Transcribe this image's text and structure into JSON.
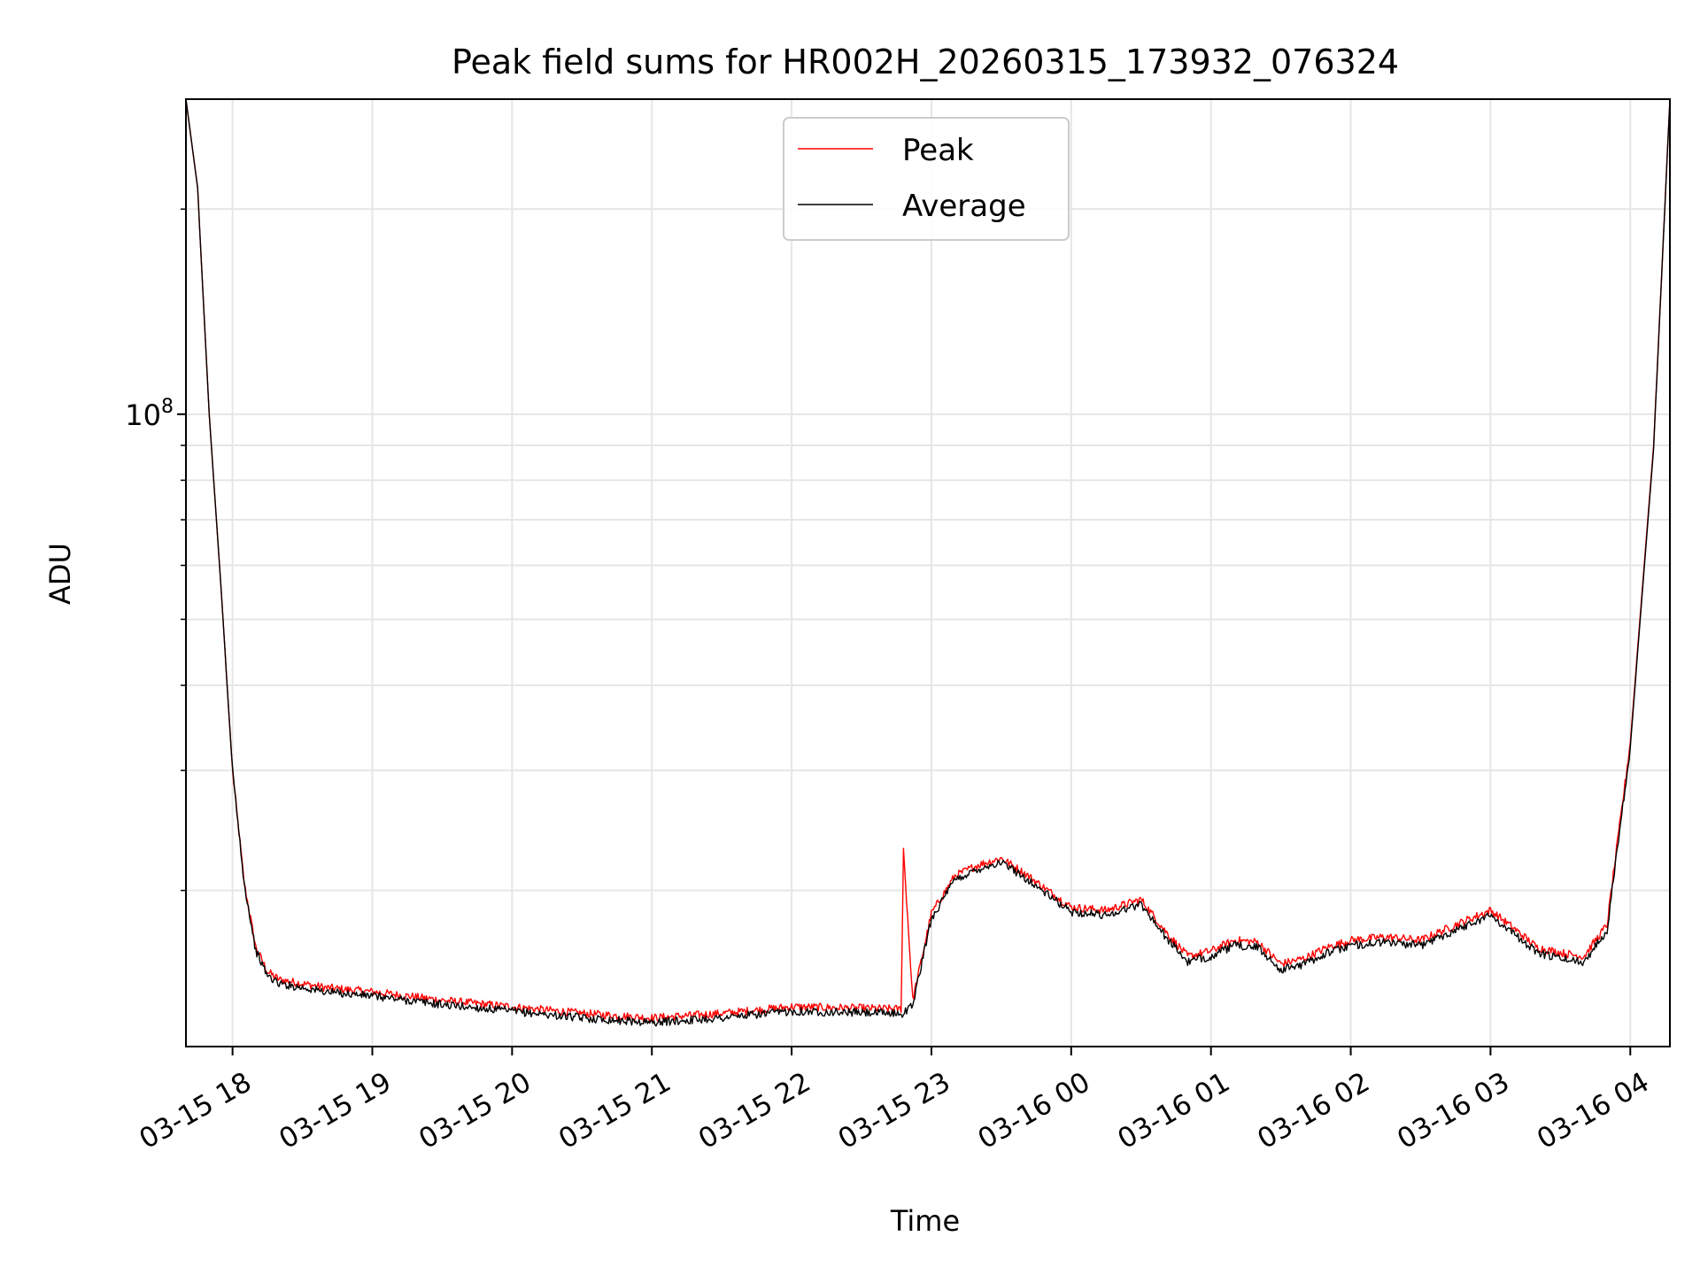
{
  "chart_data": {
    "type": "line",
    "title": "Peak field sums for HR002H_20260315_173932_076324",
    "xlabel": "Time",
    "ylabel": "ADU",
    "y_scale": "log",
    "grid": "on (major and minor)",
    "legend_placement": "top-center",
    "x_start": "2026-03-15T17:39",
    "x_end": "2026-03-16T04:18",
    "xlim": [
      "2026-03-15T17:40",
      "2026-03-16T04:17"
    ],
    "ylim": [
      11800000,
      290000000
    ],
    "x_ticks": [
      "03-15 18",
      "03-15 19",
      "03-15 20",
      "03-15 21",
      "03-15 22",
      "03-15 23",
      "03-16 00",
      "03-16 01",
      "03-16 02",
      "03-16 03",
      "03-16 04"
    ],
    "y_tick_major": "10^8",
    "y_ticks_minor": [
      20000000,
      30000000,
      40000000,
      50000000,
      60000000,
      70000000,
      80000000,
      90000000,
      200000000
    ],
    "series": [
      {
        "name": "Peak",
        "color": "#ff0000",
        "x": [
          "2026-03-15T17:40",
          "2026-03-15T17:45",
          "2026-03-15T17:50",
          "2026-03-15T17:55",
          "2026-03-15T18:00",
          "2026-03-15T18:05",
          "2026-03-15T18:10",
          "2026-03-15T18:15",
          "2026-03-15T18:20",
          "2026-03-15T18:25",
          "2026-03-15T18:30",
          "2026-03-15T18:40",
          "2026-03-15T19:00",
          "2026-03-15T19:30",
          "2026-03-15T20:00",
          "2026-03-15T20:30",
          "2026-03-15T21:00",
          "2026-03-15T21:30",
          "2026-03-15T22:00",
          "2026-03-15T22:45",
          "2026-03-15T22:47",
          "2026-03-15T22:48",
          "2026-03-15T22:52",
          "2026-03-15T23:00",
          "2026-03-15T23:10",
          "2026-03-15T23:20",
          "2026-03-15T23:30",
          "2026-03-15T23:40",
          "2026-03-15T23:50",
          "2026-03-16T00:00",
          "2026-03-16T00:15",
          "2026-03-16T00:30",
          "2026-03-16T00:40",
          "2026-03-16T00:50",
          "2026-03-16T01:00",
          "2026-03-16T01:10",
          "2026-03-16T01:20",
          "2026-03-16T01:30",
          "2026-03-16T01:40",
          "2026-03-16T01:50",
          "2026-03-16T02:00",
          "2026-03-16T02:15",
          "2026-03-16T02:30",
          "2026-03-16T02:45",
          "2026-03-16T03:00",
          "2026-03-16T03:10",
          "2026-03-16T03:20",
          "2026-03-16T03:30",
          "2026-03-16T03:40",
          "2026-03-16T03:50",
          "2026-03-16T04:00",
          "2026-03-16T04:10",
          "2026-03-16T04:17"
        ],
        "values": [
          290000000,
          215000000,
          100000000,
          56000000,
          30000000,
          20500000,
          16500000,
          15200000,
          14800000,
          14700000,
          14600000,
          14400000,
          14200000,
          13800000,
          13500000,
          13200000,
          13000000,
          13200000,
          13500000,
          13400000,
          13400000,
          23000000,
          13800000,
          18500000,
          21000000,
          21800000,
          22300000,
          21200000,
          20000000,
          18900000,
          18700000,
          19400000,
          17500000,
          16000000,
          16300000,
          16900000,
          16800000,
          15600000,
          15900000,
          16500000,
          16900000,
          17100000,
          16900000,
          17800000,
          18700000,
          17600000,
          16500000,
          16200000,
          16000000,
          17800000,
          33000000,
          90000000,
          290000000
        ]
      },
      {
        "name": "Average",
        "color": "#000000",
        "x": [
          "2026-03-15T17:40",
          "2026-03-15T17:45",
          "2026-03-15T17:50",
          "2026-03-15T17:55",
          "2026-03-15T18:00",
          "2026-03-15T18:05",
          "2026-03-15T18:10",
          "2026-03-15T18:15",
          "2026-03-15T18:20",
          "2026-03-15T18:25",
          "2026-03-15T18:30",
          "2026-03-15T18:40",
          "2026-03-15T19:00",
          "2026-03-15T19:30",
          "2026-03-15T20:00",
          "2026-03-15T20:30",
          "2026-03-15T21:00",
          "2026-03-15T21:30",
          "2026-03-15T22:00",
          "2026-03-15T22:45",
          "2026-03-15T22:47",
          "2026-03-15T22:48",
          "2026-03-15T22:52",
          "2026-03-15T23:00",
          "2026-03-15T23:10",
          "2026-03-15T23:20",
          "2026-03-15T23:30",
          "2026-03-15T23:40",
          "2026-03-15T23:50",
          "2026-03-16T00:00",
          "2026-03-16T00:15",
          "2026-03-16T00:30",
          "2026-03-16T00:40",
          "2026-03-16T00:50",
          "2026-03-16T01:00",
          "2026-03-16T01:10",
          "2026-03-16T01:20",
          "2026-03-16T01:30",
          "2026-03-16T01:40",
          "2026-03-16T01:50",
          "2026-03-16T02:00",
          "2026-03-16T02:15",
          "2026-03-16T02:30",
          "2026-03-16T02:45",
          "2026-03-16T03:00",
          "2026-03-16T03:10",
          "2026-03-16T03:20",
          "2026-03-16T03:30",
          "2026-03-16T03:40",
          "2026-03-16T03:50",
          "2026-03-16T04:00",
          "2026-03-16T04:10",
          "2026-03-16T04:17"
        ],
        "values": [
          290000000,
          215000000,
          100000000,
          56000000,
          30000000,
          20500000,
          16300000,
          15000000,
          14600000,
          14500000,
          14400000,
          14200000,
          14000000,
          13600000,
          13300000,
          13000000,
          12800000,
          13000000,
          13300000,
          13200000,
          13200000,
          13200000,
          13600000,
          18200000,
          20700000,
          21500000,
          22000000,
          20900000,
          19700000,
          18600000,
          18400000,
          19100000,
          17200000,
          15700000,
          16000000,
          16600000,
          16500000,
          15300000,
          15600000,
          16200000,
          16600000,
          16800000,
          16600000,
          17500000,
          18400000,
          17300000,
          16200000,
          15900000,
          15700000,
          17500000,
          32500000,
          89000000,
          290000000
        ]
      }
    ]
  }
}
